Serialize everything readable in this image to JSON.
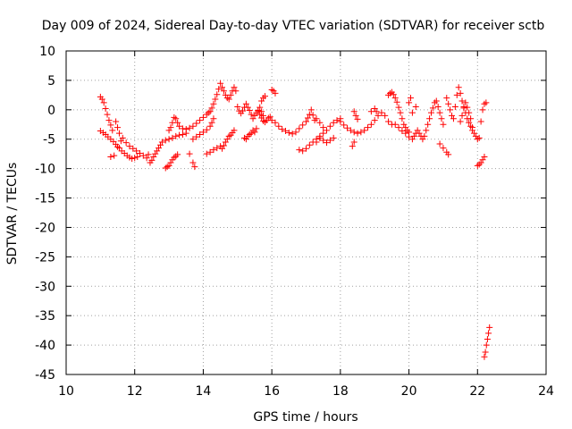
{
  "chart_data": {
    "type": "scatter",
    "title": "Day 009 of 2024, Sidereal Day-to-day VTEC variation (SDTVAR) for receiver sctb",
    "xlabel": "GPS time / hours",
    "ylabel": "SDTVAR / TECUs",
    "xlim": [
      10,
      24
    ],
    "ylim": [
      -45,
      10
    ],
    "x_ticks": [
      10,
      12,
      14,
      16,
      18,
      20,
      22,
      24
    ],
    "y_ticks": [
      10,
      5,
      0,
      -5,
      -10,
      -15,
      -20,
      -25,
      -30,
      -35,
      -40,
      -45
    ],
    "grid": true,
    "marker": "+",
    "color": "#ff0000",
    "series": [
      {
        "name": "sctb",
        "points": [
          [
            11.0,
            2.2
          ],
          [
            11.05,
            1.8
          ],
          [
            11.1,
            1.2
          ],
          [
            11.15,
            0.2
          ],
          [
            11.2,
            -0.8
          ],
          [
            11.25,
            -1.8
          ],
          [
            11.3,
            -2.6
          ],
          [
            11.35,
            -3.5
          ],
          [
            11.0,
            -3.6
          ],
          [
            11.08,
            -3.9
          ],
          [
            11.15,
            -4.2
          ],
          [
            11.22,
            -4.6
          ],
          [
            11.3,
            -5.0
          ],
          [
            11.38,
            -5.4
          ],
          [
            11.45,
            -5.9
          ],
          [
            11.5,
            -6.3
          ],
          [
            11.3,
            -8.0
          ],
          [
            11.4,
            -7.8
          ],
          [
            11.45,
            -2.0
          ],
          [
            11.5,
            -3.0
          ],
          [
            11.55,
            -4.0
          ],
          [
            11.6,
            -5.3
          ],
          [
            11.55,
            -6.5
          ],
          [
            11.62,
            -7.0
          ],
          [
            11.7,
            -7.4
          ],
          [
            11.78,
            -7.8
          ],
          [
            11.85,
            -8.1
          ],
          [
            11.92,
            -8.3
          ],
          [
            12.0,
            -8.2
          ],
          [
            12.08,
            -8.0
          ],
          [
            11.65,
            -4.8
          ],
          [
            11.75,
            -5.6
          ],
          [
            11.85,
            -6.2
          ],
          [
            11.95,
            -6.6
          ],
          [
            12.05,
            -7.0
          ],
          [
            12.15,
            -7.4
          ],
          [
            12.25,
            -7.8
          ],
          [
            12.35,
            -8.2
          ],
          [
            12.4,
            -7.6
          ],
          [
            12.45,
            -9.0
          ],
          [
            12.5,
            -8.6
          ],
          [
            12.55,
            -8.0
          ],
          [
            12.6,
            -7.5
          ],
          [
            12.65,
            -7.0
          ],
          [
            12.7,
            -6.5
          ],
          [
            12.75,
            -6.0
          ],
          [
            12.8,
            -5.5
          ],
          [
            12.9,
            -5.2
          ],
          [
            13.0,
            -5.0
          ],
          [
            13.1,
            -4.8
          ],
          [
            13.2,
            -4.5
          ],
          [
            13.3,
            -4.3
          ],
          [
            13.4,
            -4.2
          ],
          [
            13.5,
            -4.0
          ],
          [
            12.9,
            -9.9
          ],
          [
            12.95,
            -9.7
          ],
          [
            13.0,
            -9.5
          ],
          [
            13.05,
            -9.0
          ],
          [
            13.1,
            -8.5
          ],
          [
            13.15,
            -8.1
          ],
          [
            13.2,
            -7.9
          ],
          [
            13.25,
            -7.6
          ],
          [
            13.0,
            -3.5
          ],
          [
            13.05,
            -3.0
          ],
          [
            13.1,
            -2.2
          ],
          [
            13.15,
            -1.3
          ],
          [
            13.2,
            -1.5
          ],
          [
            13.25,
            -2.2
          ],
          [
            13.3,
            -2.8
          ],
          [
            13.4,
            -3.2
          ],
          [
            13.5,
            -3.3
          ],
          [
            13.6,
            -3.1
          ],
          [
            13.7,
            -2.8
          ],
          [
            13.8,
            -2.3
          ],
          [
            13.9,
            -1.8
          ],
          [
            14.0,
            -1.3
          ],
          [
            14.1,
            -0.8
          ],
          [
            14.15,
            -0.5
          ],
          [
            13.7,
            -5.0
          ],
          [
            13.8,
            -4.6
          ],
          [
            13.9,
            -4.2
          ],
          [
            14.0,
            -3.8
          ],
          [
            14.1,
            -3.4
          ],
          [
            14.2,
            -2.8
          ],
          [
            14.25,
            -2.2
          ],
          [
            14.3,
            -1.5
          ],
          [
            14.2,
            -0.3
          ],
          [
            14.25,
            0.3
          ],
          [
            14.3,
            1.0
          ],
          [
            14.35,
            1.8
          ],
          [
            14.4,
            2.6
          ],
          [
            14.45,
            3.5
          ],
          [
            14.5,
            4.5
          ],
          [
            14.55,
            3.8
          ],
          [
            14.6,
            3.2
          ],
          [
            14.65,
            2.5
          ],
          [
            14.7,
            2.0
          ],
          [
            14.75,
            1.8
          ],
          [
            14.8,
            2.5
          ],
          [
            14.85,
            3.2
          ],
          [
            14.9,
            3.8
          ],
          [
            14.95,
            3.2
          ],
          [
            13.6,
            -7.5
          ],
          [
            13.7,
            -9.0
          ],
          [
            13.75,
            -9.7
          ],
          [
            14.1,
            -7.5
          ],
          [
            14.2,
            -7.2
          ],
          [
            14.3,
            -6.8
          ],
          [
            14.4,
            -6.5
          ],
          [
            14.5,
            -6.2
          ],
          [
            14.55,
            -6.6
          ],
          [
            14.6,
            -6.1
          ],
          [
            14.65,
            -5.5
          ],
          [
            14.7,
            -5.0
          ],
          [
            14.75,
            -4.5
          ],
          [
            14.8,
            -4.3
          ],
          [
            14.85,
            -3.9
          ],
          [
            14.9,
            -3.5
          ],
          [
            15.0,
            0.5
          ],
          [
            15.05,
            -0.2
          ],
          [
            15.1,
            -0.6
          ],
          [
            15.15,
            -0.2
          ],
          [
            15.2,
            0.4
          ],
          [
            15.25,
            1.0
          ],
          [
            15.3,
            0.4
          ],
          [
            15.35,
            -0.1
          ],
          [
            15.4,
            -0.8
          ],
          [
            15.45,
            -1.5
          ],
          [
            15.5,
            -1.0
          ],
          [
            15.55,
            -0.5
          ],
          [
            15.6,
            -0.1
          ],
          [
            15.65,
            0.4
          ],
          [
            15.7,
            -0.3
          ],
          [
            15.75,
            -1.0
          ],
          [
            15.2,
            -4.8
          ],
          [
            15.25,
            -5.0
          ],
          [
            15.3,
            -4.5
          ],
          [
            15.35,
            -4.2
          ],
          [
            15.4,
            -4.0
          ],
          [
            15.45,
            -3.5
          ],
          [
            15.5,
            -3.8
          ],
          [
            15.55,
            -3.2
          ],
          [
            15.6,
            -0.2
          ],
          [
            15.65,
            -0.8
          ],
          [
            15.7,
            -1.4
          ],
          [
            15.75,
            -1.9
          ],
          [
            15.8,
            -2.1
          ],
          [
            15.85,
            -1.8
          ],
          [
            15.9,
            -1.4
          ],
          [
            15.95,
            -1.2
          ],
          [
            15.7,
            1.5
          ],
          [
            15.75,
            2.0
          ],
          [
            15.8,
            2.3
          ],
          [
            16.0,
            3.4
          ],
          [
            16.05,
            3.2
          ],
          [
            16.1,
            2.8
          ],
          [
            16.0,
            -1.8
          ],
          [
            16.1,
            -2.2
          ],
          [
            16.2,
            -2.8
          ],
          [
            16.3,
            -3.3
          ],
          [
            16.4,
            -3.6
          ],
          [
            16.5,
            -3.9
          ],
          [
            16.6,
            -4.1
          ],
          [
            16.7,
            -3.8
          ],
          [
            16.8,
            -3.2
          ],
          [
            16.9,
            -2.6
          ],
          [
            17.0,
            -2.0
          ],
          [
            17.05,
            -1.4
          ],
          [
            17.1,
            -0.8
          ],
          [
            17.15,
            0.0
          ],
          [
            17.2,
            -0.9
          ],
          [
            17.25,
            -1.8
          ],
          [
            16.8,
            -6.8
          ],
          [
            16.9,
            -7.0
          ],
          [
            17.0,
            -6.6
          ],
          [
            17.1,
            -6.0
          ],
          [
            17.2,
            -5.5
          ],
          [
            17.3,
            -5.0
          ],
          [
            17.4,
            -4.5
          ],
          [
            17.5,
            -4.0
          ],
          [
            17.3,
            -1.5
          ],
          [
            17.4,
            -2.2
          ],
          [
            17.5,
            -3.0
          ],
          [
            17.6,
            -3.5
          ],
          [
            17.7,
            -2.8
          ],
          [
            17.8,
            -2.2
          ],
          [
            17.9,
            -1.8
          ],
          [
            18.0,
            -1.5
          ],
          [
            17.3,
            -5.5
          ],
          [
            17.4,
            -4.8
          ],
          [
            17.5,
            -5.2
          ],
          [
            17.6,
            -5.6
          ],
          [
            17.7,
            -5.2
          ],
          [
            17.8,
            -4.8
          ],
          [
            18.0,
            -2.0
          ],
          [
            18.1,
            -2.6
          ],
          [
            18.2,
            -3.1
          ],
          [
            18.3,
            -3.5
          ],
          [
            18.4,
            -3.8
          ],
          [
            18.5,
            -4.0
          ],
          [
            18.6,
            -3.8
          ],
          [
            18.7,
            -3.5
          ],
          [
            18.4,
            -0.3
          ],
          [
            18.45,
            -1.0
          ],
          [
            18.5,
            -1.6
          ],
          [
            18.35,
            -6.2
          ],
          [
            18.4,
            -5.5
          ],
          [
            18.8,
            -3.0
          ],
          [
            18.9,
            -2.5
          ],
          [
            19.0,
            -1.8
          ],
          [
            19.1,
            -1.0
          ],
          [
            19.2,
            -0.5
          ],
          [
            19.3,
            -1.0
          ],
          [
            19.4,
            -2.0
          ],
          [
            19.5,
            -2.5
          ],
          [
            18.9,
            -0.3
          ],
          [
            19.0,
            0.2
          ],
          [
            19.05,
            -0.3
          ],
          [
            19.4,
            2.5
          ],
          [
            19.45,
            2.8
          ],
          [
            19.5,
            3.0
          ],
          [
            19.55,
            2.6
          ],
          [
            19.6,
            2.0
          ],
          [
            19.65,
            1.3
          ],
          [
            19.7,
            0.4
          ],
          [
            19.75,
            -0.5
          ],
          [
            19.8,
            -1.5
          ],
          [
            19.85,
            -2.5
          ],
          [
            19.9,
            -3.0
          ],
          [
            19.95,
            -3.5
          ],
          [
            20.0,
            -3.8
          ],
          [
            19.6,
            -2.5
          ],
          [
            19.7,
            -3.0
          ],
          [
            19.8,
            -3.6
          ],
          [
            19.9,
            -4.0
          ],
          [
            20.0,
            -4.6
          ],
          [
            20.1,
            -5.0
          ],
          [
            20.15,
            -4.5
          ],
          [
            20.2,
            -4.0
          ],
          [
            20.2,
            0.5
          ],
          [
            20.1,
            -0.5
          ],
          [
            20.0,
            1.2
          ],
          [
            20.05,
            2.0
          ],
          [
            20.25,
            -3.5
          ],
          [
            20.3,
            -4.0
          ],
          [
            20.35,
            -4.5
          ],
          [
            20.4,
            -5.0
          ],
          [
            20.45,
            -4.5
          ],
          [
            20.5,
            -3.5
          ],
          [
            20.55,
            -2.5
          ],
          [
            20.6,
            -1.5
          ],
          [
            20.65,
            -0.5
          ],
          [
            20.7,
            0.3
          ],
          [
            20.75,
            1.2
          ],
          [
            20.8,
            1.5
          ],
          [
            20.85,
            0.5
          ],
          [
            20.9,
            -0.5
          ],
          [
            20.95,
            -1.5
          ],
          [
            21.0,
            -2.5
          ],
          [
            20.9,
            -5.8
          ],
          [
            21.0,
            -6.5
          ],
          [
            21.1,
            -7.2
          ],
          [
            21.15,
            -7.6
          ],
          [
            21.1,
            2.0
          ],
          [
            21.15,
            1.0
          ],
          [
            21.2,
            0.0
          ],
          [
            21.25,
            -1.0
          ],
          [
            21.3,
            -1.5
          ],
          [
            21.35,
            0.5
          ],
          [
            21.4,
            2.5
          ],
          [
            21.45,
            3.8
          ],
          [
            21.5,
            2.8
          ],
          [
            21.55,
            1.5
          ],
          [
            21.6,
            0.3
          ],
          [
            21.65,
            -0.5
          ],
          [
            21.7,
            -1.5
          ],
          [
            21.75,
            -2.2
          ],
          [
            21.8,
            -2.8
          ],
          [
            21.85,
            -3.5
          ],
          [
            21.5,
            -2.0
          ],
          [
            21.55,
            -1.0
          ],
          [
            21.6,
            0.5
          ],
          [
            21.65,
            1.2
          ],
          [
            21.7,
            0.4
          ],
          [
            21.75,
            -0.5
          ],
          [
            21.8,
            -1.5
          ],
          [
            21.85,
            -3.0
          ],
          [
            21.9,
            -4.0
          ],
          [
            21.95,
            -4.5
          ],
          [
            22.0,
            -5.0
          ],
          [
            22.05,
            -4.8
          ],
          [
            22.1,
            -2.0
          ],
          [
            22.15,
            0.0
          ],
          [
            22.2,
            1.0
          ],
          [
            22.25,
            1.2
          ],
          [
            22.0,
            -9.5
          ],
          [
            22.05,
            -9.3
          ],
          [
            22.1,
            -9.0
          ],
          [
            22.15,
            -8.5
          ],
          [
            22.2,
            -8.0
          ],
          [
            22.2,
            -42.0
          ],
          [
            22.23,
            -41.2
          ],
          [
            22.26,
            -40.0
          ],
          [
            22.29,
            -39.0
          ],
          [
            22.32,
            -38.0
          ],
          [
            22.35,
            -37.0
          ]
        ]
      }
    ]
  }
}
